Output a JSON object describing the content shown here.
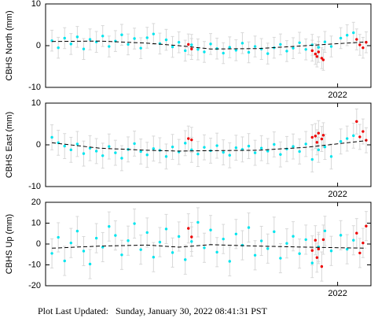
{
  "chart_data": [
    {
      "type": "scatter",
      "ylabel": "CBHS North (mm)",
      "xlim": [
        2020.16,
        2022.21
      ],
      "xticks": [
        2022
      ],
      "ylim": [
        -10,
        10
      ],
      "yticks": [
        -10,
        0,
        10
      ],
      "series": [
        {
          "color": "#00e5ee",
          "error": 2.5,
          "x": [
            2020.2,
            2020.24,
            2020.28,
            2020.32,
            2020.36,
            2020.4,
            2020.44,
            2020.48,
            2020.52,
            2020.56,
            2020.6,
            2020.64,
            2020.68,
            2020.72,
            2020.76,
            2020.8,
            2020.84,
            2020.88,
            2020.92,
            2020.96,
            2021.0,
            2021.04,
            2021.08,
            2021.12,
            2021.16,
            2021.2,
            2021.24,
            2021.28,
            2021.32,
            2021.36,
            2021.4,
            2021.44,
            2021.48,
            2021.52,
            2021.56,
            2021.6,
            2021.64,
            2021.68,
            2021.72,
            2021.76,
            2021.8,
            2021.84,
            2021.88,
            2021.92,
            2021.96,
            2022.02,
            2022.06,
            2022.1
          ],
          "values": [
            1.2,
            -0.5,
            1.8,
            0.4,
            2.1,
            -0.8,
            1.5,
            0.9,
            2.3,
            -0.2,
            1.1,
            2.6,
            0.3,
            1.7,
            -0.6,
            1.9,
            2.8,
            0.5,
            1.4,
            -0.3,
            0.8,
            -1.2,
            0.2,
            -0.9,
            -1.5,
            0.4,
            -0.7,
            -1.8,
            -0.4,
            -1.1,
            0.6,
            -1.6,
            -0.2,
            -0.8,
            -1.9,
            -0.5,
            0.3,
            -1.3,
            -0.6,
            0.7,
            -0.9,
            0.2,
            -0.4,
            0.9,
            -0.2,
            1.8,
            2.5,
            3.1
          ]
        },
        {
          "color": "#ee0000",
          "error": 2.5,
          "x": [
            2021.06,
            2021.08,
            2021.84,
            2021.86,
            2021.87,
            2021.88,
            2021.9,
            2021.91,
            2022.12,
            2022.14,
            2022.16,
            2022.18
          ],
          "values": [
            0.3,
            -0.8,
            -1.2,
            -2.0,
            -2.6,
            -1.5,
            -3.0,
            -3.4,
            1.5,
            0.2,
            -0.5,
            0.8
          ]
        }
      ],
      "trend": {
        "color": "#000000",
        "x": [
          2020.2,
          2020.5,
          2020.8,
          2021.0,
          2021.2,
          2021.5,
          2021.8,
          2022.18
        ],
        "values": [
          1.0,
          1.1,
          0.6,
          0,
          -0.8,
          -0.7,
          0,
          0.9
        ]
      }
    },
    {
      "type": "scatter",
      "ylabel": "CBHS East (mm)",
      "xlim": [
        2020.16,
        2022.21
      ],
      "xticks": [
        2022
      ],
      "ylim": [
        -10,
        10
      ],
      "yticks": [
        -10,
        0,
        10
      ],
      "series": [
        {
          "color": "#00e5ee",
          "error": 3,
          "x": [
            2020.2,
            2020.24,
            2020.28,
            2020.32,
            2020.36,
            2020.4,
            2020.44,
            2020.48,
            2020.52,
            2020.56,
            2020.6,
            2020.64,
            2020.68,
            2020.72,
            2020.76,
            2020.8,
            2020.84,
            2020.88,
            2020.92,
            2020.96,
            2021.0,
            2021.04,
            2021.08,
            2021.12,
            2021.16,
            2021.2,
            2021.24,
            2021.28,
            2021.32,
            2021.36,
            2021.4,
            2021.44,
            2021.48,
            2021.52,
            2021.56,
            2021.6,
            2021.64,
            2021.68,
            2021.72,
            2021.76,
            2021.8,
            2021.84,
            2021.88,
            2021.92,
            2021.96,
            2022.02,
            2022.06,
            2022.1
          ],
          "values": [
            1.8,
            0.5,
            -0.3,
            -1.2,
            0.2,
            -2.1,
            -0.8,
            -1.5,
            -2.6,
            -0.4,
            -1.9,
            -3.2,
            -1.1,
            0.3,
            -1.6,
            -2.4,
            -0.9,
            -1.3,
            -2.8,
            -0.5,
            -1.7,
            0.4,
            -1.2,
            -2.2,
            -0.6,
            -1.4,
            -0.2,
            -1.8,
            -2.5,
            -0.7,
            -1.1,
            -0.3,
            -1.9,
            -0.8,
            -1.5,
            0.1,
            -2.3,
            -1.0,
            -0.4,
            -1.6,
            0.2,
            -3.5,
            -1.2,
            -0.5,
            -2.8,
            0.8,
            1.5,
            2.2
          ]
        },
        {
          "color": "#ee0000",
          "error": 3,
          "x": [
            2021.06,
            2021.08,
            2021.84,
            2021.86,
            2021.87,
            2021.88,
            2021.9,
            2021.91,
            2022.12,
            2022.14,
            2022.16,
            2022.18
          ],
          "values": [
            1.5,
            1.2,
            1.8,
            2.1,
            0.6,
            2.8,
            1.4,
            2.3,
            5.6,
            1.9,
            3.2,
            1.1
          ]
        }
      ],
      "trend": {
        "color": "#000000",
        "x": [
          2020.2,
          2020.5,
          2020.8,
          2021.0,
          2021.2,
          2021.5,
          2021.8,
          2022.18
        ],
        "values": [
          0.5,
          -0.8,
          -1.3,
          -1.5,
          -1.4,
          -1.3,
          -0.6,
          1.0
        ]
      }
    },
    {
      "type": "scatter",
      "ylabel": "CBHS Up (mm)",
      "xlim": [
        2020.16,
        2022.21
      ],
      "xticks": [
        2022
      ],
      "ylim": [
        -20,
        20
      ],
      "yticks": [
        -20,
        -10,
        0,
        10,
        20
      ],
      "series": [
        {
          "color": "#00e5ee",
          "error": 7,
          "x": [
            2020.2,
            2020.24,
            2020.28,
            2020.32,
            2020.36,
            2020.4,
            2020.44,
            2020.48,
            2020.52,
            2020.56,
            2020.6,
            2020.64,
            2020.68,
            2020.72,
            2020.76,
            2020.8,
            2020.84,
            2020.88,
            2020.92,
            2020.96,
            2021.0,
            2021.04,
            2021.08,
            2021.12,
            2021.16,
            2021.2,
            2021.24,
            2021.28,
            2021.32,
            2021.36,
            2021.4,
            2021.44,
            2021.48,
            2021.52,
            2021.56,
            2021.6,
            2021.64,
            2021.68,
            2021.72,
            2021.76,
            2021.8,
            2021.84,
            2021.88,
            2021.92,
            2021.96,
            2022.02,
            2022.06,
            2022.1
          ],
          "values": [
            -4.5,
            3.2,
            -8.1,
            0.5,
            6.2,
            -3.4,
            -9.6,
            2.8,
            -1.5,
            8.4,
            4.1,
            -5.2,
            1.6,
            9.8,
            -2.7,
            5.5,
            -6.3,
            0.9,
            7.2,
            -4.1,
            3.6,
            -7.5,
            1.2,
            10.4,
            -1.8,
            6.7,
            -3.9,
            2.4,
            -8.3,
            4.8,
            -0.6,
            7.9,
            -5.4,
            1.5,
            -2.2,
            5.9,
            -6.8,
            0.3,
            3.7,
            -4.6,
            2.1,
            -9.1,
            -1.4,
            6.3,
            -3.3,
            4.2,
            -2.5,
            1.8
          ]
        },
        {
          "color": "#ee0000",
          "error": 7,
          "x": [
            2021.06,
            2021.08,
            2021.84,
            2021.86,
            2021.87,
            2021.88,
            2021.9,
            2021.91,
            2022.12,
            2022.14,
            2022.16,
            2022.18
          ],
          "values": [
            7.5,
            3.4,
            -3.1,
            1.8,
            -6.5,
            -2.4,
            -10.8,
            2.1,
            5.2,
            -4.3,
            0.5,
            8.6
          ]
        }
      ],
      "trend": {
        "color": "#000000",
        "x": [
          2020.2,
          2020.5,
          2020.8,
          2021.0,
          2021.2,
          2021.5,
          2021.8,
          2022.18
        ],
        "values": [
          -2,
          -1,
          -0.5,
          -1.5,
          -0.3,
          -1,
          -1.5,
          -2
        ]
      }
    }
  ],
  "footer": "Plot Last Updated:   Sunday, January 30, 2022 08:41:31 PST"
}
